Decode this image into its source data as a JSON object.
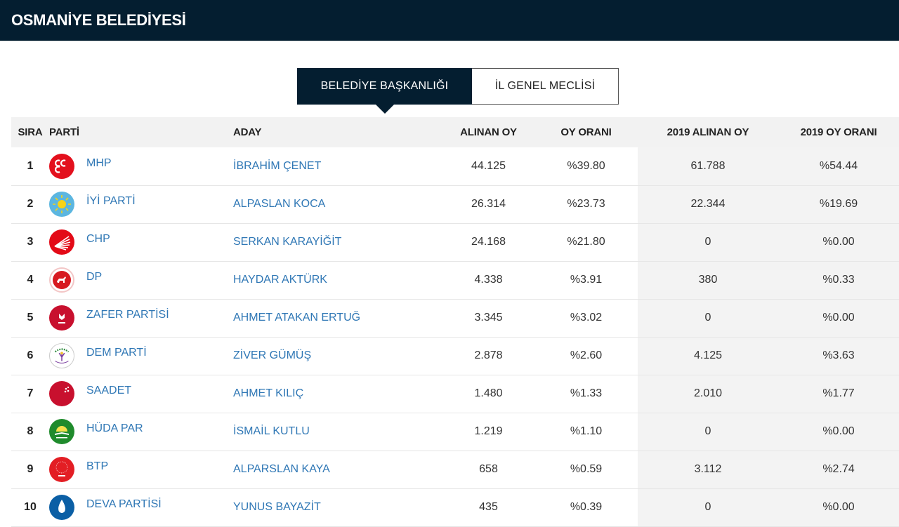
{
  "header": {
    "title": "OSMANİYE BELEDİYESİ",
    "bg_color": "#041e30"
  },
  "tabs": [
    {
      "label": "BELEDİYE BAŞKANLIĞI",
      "active": true
    },
    {
      "label": "İL GENEL MECLİSİ",
      "active": false
    }
  ],
  "table": {
    "columns": [
      "SIRA",
      "PARTİ",
      "ADAY",
      "ALINAN OY",
      "OY ORANI",
      "2019 ALINAN OY",
      "2019 OY ORANI"
    ],
    "rows": [
      {
        "sira": "1",
        "party": "MHP",
        "logo": "mhp-logo-icon",
        "candidate": "İBRAHİM ÇENET",
        "votes": "44.125",
        "rate": "%39.80",
        "votes_2019": "61.788",
        "rate_2019": "%54.44"
      },
      {
        "sira": "2",
        "party": "İYİ PARTİ",
        "logo": "iyi-logo-icon",
        "candidate": "ALPASLAN KOCA",
        "votes": "26.314",
        "rate": "%23.73",
        "votes_2019": "22.344",
        "rate_2019": "%19.69"
      },
      {
        "sira": "3",
        "party": "CHP",
        "logo": "chp-logo-icon",
        "candidate": "SERKAN KARAYİĞİT",
        "votes": "24.168",
        "rate": "%21.80",
        "votes_2019": "0",
        "rate_2019": "%0.00"
      },
      {
        "sira": "4",
        "party": "DP",
        "logo": "dp-logo-icon",
        "candidate": "HAYDAR AKTÜRK",
        "votes": "4.338",
        "rate": "%3.91",
        "votes_2019": "380",
        "rate_2019": "%0.33"
      },
      {
        "sira": "5",
        "party": "ZAFER PARTİSİ",
        "logo": "zafer-logo-icon",
        "candidate": "AHMET ATAKAN ERTUĞ",
        "votes": "3.345",
        "rate": "%3.02",
        "votes_2019": "0",
        "rate_2019": "%0.00"
      },
      {
        "sira": "6",
        "party": "DEM PARTİ",
        "logo": "dem-logo-icon",
        "candidate": "ZİVER GÜMÜŞ",
        "votes": "2.878",
        "rate": "%2.60",
        "votes_2019": "4.125",
        "rate_2019": "%3.63"
      },
      {
        "sira": "7",
        "party": "SAADET",
        "logo": "saadet-logo-icon",
        "candidate": "AHMET KILIÇ",
        "votes": "1.480",
        "rate": "%1.33",
        "votes_2019": "2.010",
        "rate_2019": "%1.77"
      },
      {
        "sira": "8",
        "party": "HÜDA PAR",
        "logo": "hudapar-logo-icon",
        "candidate": "İSMAİL KUTLU",
        "votes": "1.219",
        "rate": "%1.10",
        "votes_2019": "0",
        "rate_2019": "%0.00"
      },
      {
        "sira": "9",
        "party": "BTP",
        "logo": "btp-logo-icon",
        "candidate": "ALPARSLAN KAYA",
        "votes": "658",
        "rate": "%0.59",
        "votes_2019": "3.112",
        "rate_2019": "%2.74"
      },
      {
        "sira": "10",
        "party": "DEVA PARTİSİ",
        "logo": "deva-logo-icon",
        "candidate": "YUNUS BAYAZİT",
        "votes": "435",
        "rate": "%0.39",
        "votes_2019": "0",
        "rate_2019": "%0.00"
      }
    ]
  },
  "colors": {
    "link": "#2f77b5",
    "header_bg": "#041e30",
    "gray_col": "#f3f3f3"
  }
}
